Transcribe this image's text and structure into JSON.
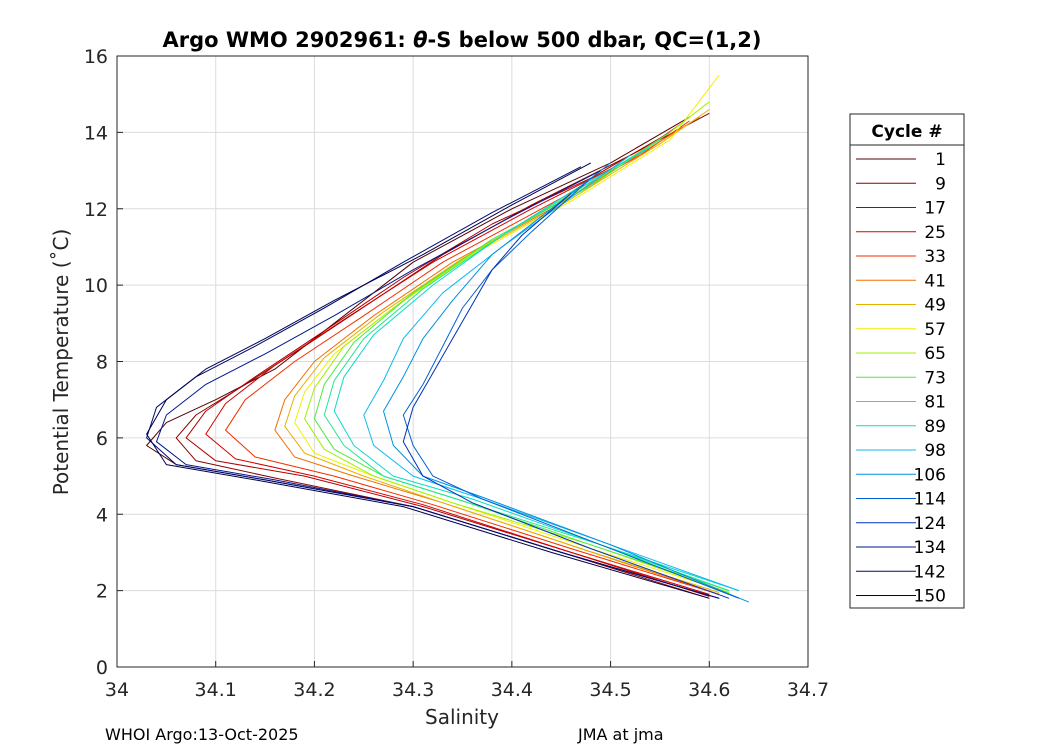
{
  "chart_data": {
    "type": "line",
    "title_prefix": "Argo WMO 2902961: ",
    "title_symbol": "θ",
    "title_suffix": "-S below 500 dbar,  QC=(1,2)",
    "xlabel": "Salinity",
    "ylabel": "Potential Temperature (˚C)",
    "xlim": [
      34.0,
      34.7
    ],
    "ylim": [
      0,
      16
    ],
    "xticks": [
      34,
      34.1,
      34.2,
      34.3,
      34.4,
      34.5,
      34.6,
      34.7
    ],
    "xtick_labels": [
      "34",
      "34.1",
      "34.2",
      "34.3",
      "34.4",
      "34.5",
      "34.6",
      "34.7"
    ],
    "yticks": [
      0,
      2,
      4,
      6,
      8,
      10,
      12,
      14,
      16
    ],
    "ytick_labels": [
      "0",
      "2",
      "4",
      "6",
      "8",
      "10",
      "12",
      "14",
      "16"
    ],
    "grid": true,
    "legend_title": "Cycle #",
    "legend_placement": "right",
    "series": [
      {
        "name": "1",
        "color": "#550000",
        "values": [
          [
            34.61,
            1.8
          ],
          [
            34.45,
            3.0
          ],
          [
            34.3,
            4.2
          ],
          [
            34.15,
            4.9
          ],
          [
            34.06,
            5.3
          ],
          [
            34.03,
            5.8
          ],
          [
            34.05,
            6.4
          ],
          [
            34.1,
            7.0
          ],
          [
            34.16,
            7.8
          ],
          [
            34.22,
            9.0
          ],
          [
            34.3,
            10.6
          ],
          [
            34.4,
            12.0
          ],
          [
            34.5,
            13.2
          ],
          [
            34.58,
            14.4
          ]
        ]
      },
      {
        "name": "9",
        "color": "#8b0000",
        "values": [
          [
            34.6,
            1.8
          ],
          [
            34.45,
            3.0
          ],
          [
            34.3,
            4.2
          ],
          [
            34.16,
            4.95
          ],
          [
            34.08,
            5.4
          ],
          [
            34.06,
            6.0
          ],
          [
            34.08,
            6.6
          ],
          [
            34.13,
            7.4
          ],
          [
            34.19,
            8.4
          ],
          [
            34.26,
            9.6
          ],
          [
            34.33,
            10.8
          ],
          [
            34.42,
            12.1
          ],
          [
            34.52,
            13.4
          ],
          [
            34.6,
            14.5
          ]
        ]
      },
      {
        "name": "17",
        "color": "#b00000",
        "values": [
          [
            34.6,
            1.85
          ],
          [
            34.46,
            3.0
          ],
          [
            34.31,
            4.2
          ],
          [
            34.19,
            5.0
          ],
          [
            34.1,
            5.4
          ],
          [
            34.07,
            6.0
          ],
          [
            34.09,
            6.7
          ],
          [
            34.14,
            7.6
          ],
          [
            34.21,
            8.8
          ],
          [
            34.29,
            10.2
          ],
          [
            34.38,
            11.6
          ],
          [
            34.48,
            12.8
          ],
          [
            34.56,
            14.0
          ]
        ]
      },
      {
        "name": "25",
        "color": "#d40000",
        "values": [
          [
            34.6,
            1.9
          ],
          [
            34.46,
            3.0
          ],
          [
            34.31,
            4.25
          ],
          [
            34.2,
            5.0
          ],
          [
            34.12,
            5.45
          ],
          [
            34.09,
            6.1
          ],
          [
            34.11,
            6.9
          ],
          [
            34.16,
            7.9
          ],
          [
            34.23,
            9.1
          ],
          [
            34.32,
            10.6
          ],
          [
            34.42,
            12.0
          ],
          [
            34.52,
            13.3
          ],
          [
            34.57,
            14.2
          ]
        ]
      },
      {
        "name": "33",
        "color": "#f03000",
        "values": [
          [
            34.61,
            1.9
          ],
          [
            34.46,
            3.1
          ],
          [
            34.32,
            4.25
          ],
          [
            34.22,
            5.0
          ],
          [
            34.14,
            5.5
          ],
          [
            34.11,
            6.2
          ],
          [
            34.13,
            7.0
          ],
          [
            34.18,
            8.0
          ],
          [
            34.25,
            9.2
          ],
          [
            34.33,
            10.6
          ],
          [
            34.43,
            12.0
          ],
          [
            34.53,
            13.4
          ],
          [
            34.58,
            14.3
          ]
        ]
      },
      {
        "name": "41",
        "color": "#f07000",
        "values": [
          [
            34.61,
            1.9
          ],
          [
            34.47,
            3.1
          ],
          [
            34.33,
            4.3
          ],
          [
            34.24,
            5.0
          ],
          [
            34.18,
            5.5
          ],
          [
            34.16,
            6.2
          ],
          [
            34.17,
            7.0
          ],
          [
            34.2,
            8.0
          ],
          [
            34.26,
            9.2
          ],
          [
            34.34,
            10.6
          ],
          [
            34.44,
            12.0
          ],
          [
            34.54,
            13.6
          ],
          [
            34.59,
            14.4
          ]
        ]
      },
      {
        "name": "49",
        "color": "#e8b000",
        "values": [
          [
            34.61,
            1.95
          ],
          [
            34.47,
            3.1
          ],
          [
            34.33,
            4.3
          ],
          [
            34.25,
            5.0
          ],
          [
            34.19,
            5.6
          ],
          [
            34.17,
            6.3
          ],
          [
            34.18,
            7.1
          ],
          [
            34.21,
            8.1
          ],
          [
            34.27,
            9.3
          ],
          [
            34.35,
            10.7
          ],
          [
            34.45,
            12.1
          ],
          [
            34.55,
            13.7
          ],
          [
            34.6,
            14.6
          ]
        ]
      },
      {
        "name": "57",
        "color": "#f0f000",
        "values": [
          [
            34.62,
            1.95
          ],
          [
            34.48,
            3.1
          ],
          [
            34.34,
            4.3
          ],
          [
            34.26,
            5.0
          ],
          [
            34.2,
            5.6
          ],
          [
            34.18,
            6.4
          ],
          [
            34.19,
            7.2
          ],
          [
            34.22,
            8.2
          ],
          [
            34.28,
            9.4
          ],
          [
            34.36,
            10.8
          ],
          [
            34.46,
            12.2
          ],
          [
            34.56,
            13.8
          ],
          [
            34.61,
            15.5
          ]
        ]
      },
      {
        "name": "65",
        "color": "#a0f000",
        "values": [
          [
            34.62,
            1.95
          ],
          [
            34.48,
            3.2
          ],
          [
            34.34,
            4.3
          ],
          [
            34.26,
            5.0
          ],
          [
            34.21,
            5.7
          ],
          [
            34.19,
            6.5
          ],
          [
            34.2,
            7.3
          ],
          [
            34.23,
            8.4
          ],
          [
            34.29,
            9.6
          ],
          [
            34.37,
            11.0
          ],
          [
            34.47,
            12.5
          ],
          [
            34.56,
            14.0
          ],
          [
            34.6,
            14.8
          ]
        ]
      },
      {
        "name": "73",
        "color": "#50e840",
        "values": [
          [
            34.62,
            2.0
          ],
          [
            34.48,
            3.2
          ],
          [
            34.35,
            4.35
          ],
          [
            34.27,
            5.0
          ],
          [
            34.22,
            5.7
          ],
          [
            34.2,
            6.5
          ],
          [
            34.21,
            7.4
          ],
          [
            34.24,
            8.5
          ],
          [
            34.3,
            9.8
          ],
          [
            34.38,
            11.2
          ],
          [
            34.48,
            12.6
          ],
          [
            34.56,
            14.0
          ]
        ]
      },
      {
        "name": "81",
        "color": "#20e890",
        "values": [
          [
            34.62,
            2.0
          ],
          [
            34.49,
            3.2
          ],
          [
            34.35,
            4.35
          ],
          [
            34.27,
            5.0
          ],
          [
            34.23,
            5.8
          ],
          [
            34.21,
            6.6
          ],
          [
            34.22,
            7.5
          ],
          [
            34.25,
            8.6
          ],
          [
            34.31,
            9.9
          ],
          [
            34.39,
            11.3
          ],
          [
            34.48,
            12.7
          ],
          [
            34.55,
            13.8
          ]
        ]
      },
      {
        "name": "89",
        "color": "#10d8c8",
        "values": [
          [
            34.63,
            2.0
          ],
          [
            34.49,
            3.2
          ],
          [
            34.36,
            4.4
          ],
          [
            34.28,
            5.0
          ],
          [
            34.24,
            5.8
          ],
          [
            34.22,
            6.7
          ],
          [
            34.23,
            7.6
          ],
          [
            34.26,
            8.7
          ],
          [
            34.32,
            10.0
          ],
          [
            34.39,
            11.3
          ],
          [
            34.47,
            12.6
          ],
          [
            34.54,
            13.6
          ]
        ]
      },
      {
        "name": "98",
        "color": "#10b8f0",
        "values": [
          [
            34.63,
            2.0
          ],
          [
            34.5,
            3.2
          ],
          [
            34.37,
            4.4
          ],
          [
            34.3,
            5.0
          ],
          [
            34.26,
            5.8
          ],
          [
            34.25,
            6.6
          ],
          [
            34.27,
            7.5
          ],
          [
            34.29,
            8.6
          ],
          [
            34.33,
            9.8
          ],
          [
            34.39,
            11.0
          ],
          [
            34.46,
            12.3
          ],
          [
            34.52,
            13.4
          ]
        ]
      },
      {
        "name": "106",
        "color": "#0090e0",
        "values": [
          [
            34.64,
            1.7
          ],
          [
            34.5,
            3.2
          ],
          [
            34.37,
            4.45
          ],
          [
            34.31,
            5.0
          ],
          [
            34.28,
            5.8
          ],
          [
            34.27,
            6.7
          ],
          [
            34.29,
            7.6
          ],
          [
            34.31,
            8.6
          ],
          [
            34.34,
            9.6
          ],
          [
            34.38,
            10.8
          ],
          [
            34.44,
            12.0
          ],
          [
            34.5,
            13.2
          ]
        ]
      },
      {
        "name": "114",
        "color": "#0060d0",
        "values": [
          [
            34.63,
            1.8
          ],
          [
            34.49,
            3.2
          ],
          [
            34.37,
            4.4
          ],
          [
            34.32,
            5.0
          ],
          [
            34.3,
            5.8
          ],
          [
            34.29,
            6.6
          ],
          [
            34.31,
            7.4
          ],
          [
            34.33,
            8.4
          ],
          [
            34.35,
            9.4
          ],
          [
            34.38,
            10.4
          ],
          [
            34.42,
            11.4
          ],
          [
            34.48,
            12.8
          ]
        ]
      },
      {
        "name": "124",
        "color": "#0030b8",
        "values": [
          [
            34.62,
            1.8
          ],
          [
            34.48,
            3.1
          ],
          [
            34.36,
            4.3
          ],
          [
            34.31,
            5.0
          ],
          [
            34.29,
            5.9
          ],
          [
            34.3,
            6.8
          ],
          [
            34.32,
            7.7
          ],
          [
            34.34,
            8.6
          ],
          [
            34.36,
            9.5
          ],
          [
            34.38,
            10.4
          ],
          [
            34.41,
            11.3
          ],
          [
            34.46,
            12.4
          ]
        ]
      },
      {
        "name": "134",
        "color": "#001890",
        "values": [
          [
            34.61,
            1.8
          ],
          [
            34.45,
            3.0
          ],
          [
            34.3,
            4.2
          ],
          [
            34.16,
            4.9
          ],
          [
            34.07,
            5.3
          ],
          [
            34.04,
            5.9
          ],
          [
            34.05,
            6.6
          ],
          [
            34.09,
            7.4
          ],
          [
            34.15,
            8.2
          ],
          [
            34.22,
            9.2
          ],
          [
            34.3,
            10.4
          ],
          [
            34.4,
            11.8
          ],
          [
            34.49,
            13.0
          ]
        ]
      },
      {
        "name": "142",
        "color": "#000c70",
        "values": [
          [
            34.61,
            1.8
          ],
          [
            34.45,
            3.0
          ],
          [
            34.3,
            4.2
          ],
          [
            34.15,
            4.9
          ],
          [
            34.06,
            5.3
          ],
          [
            34.03,
            6.0
          ],
          [
            34.04,
            6.8
          ],
          [
            34.08,
            7.6
          ],
          [
            34.14,
            8.4
          ],
          [
            34.21,
            9.4
          ],
          [
            34.29,
            10.6
          ],
          [
            34.38,
            11.9
          ],
          [
            34.47,
            13.1
          ]
        ]
      },
      {
        "name": "150",
        "color": "#000050",
        "values": [
          [
            34.6,
            1.8
          ],
          [
            34.44,
            3.0
          ],
          [
            34.29,
            4.2
          ],
          [
            34.14,
            4.9
          ],
          [
            34.05,
            5.3
          ],
          [
            34.03,
            6.1
          ],
          [
            34.05,
            7.0
          ],
          [
            34.09,
            7.8
          ],
          [
            34.15,
            8.6
          ],
          [
            34.22,
            9.6
          ],
          [
            34.31,
            10.8
          ],
          [
            34.4,
            12.1
          ],
          [
            34.48,
            13.2
          ]
        ]
      }
    ]
  },
  "footer": {
    "left": "WHOI Argo:13-Oct-2025",
    "right": "JMA at jma"
  }
}
